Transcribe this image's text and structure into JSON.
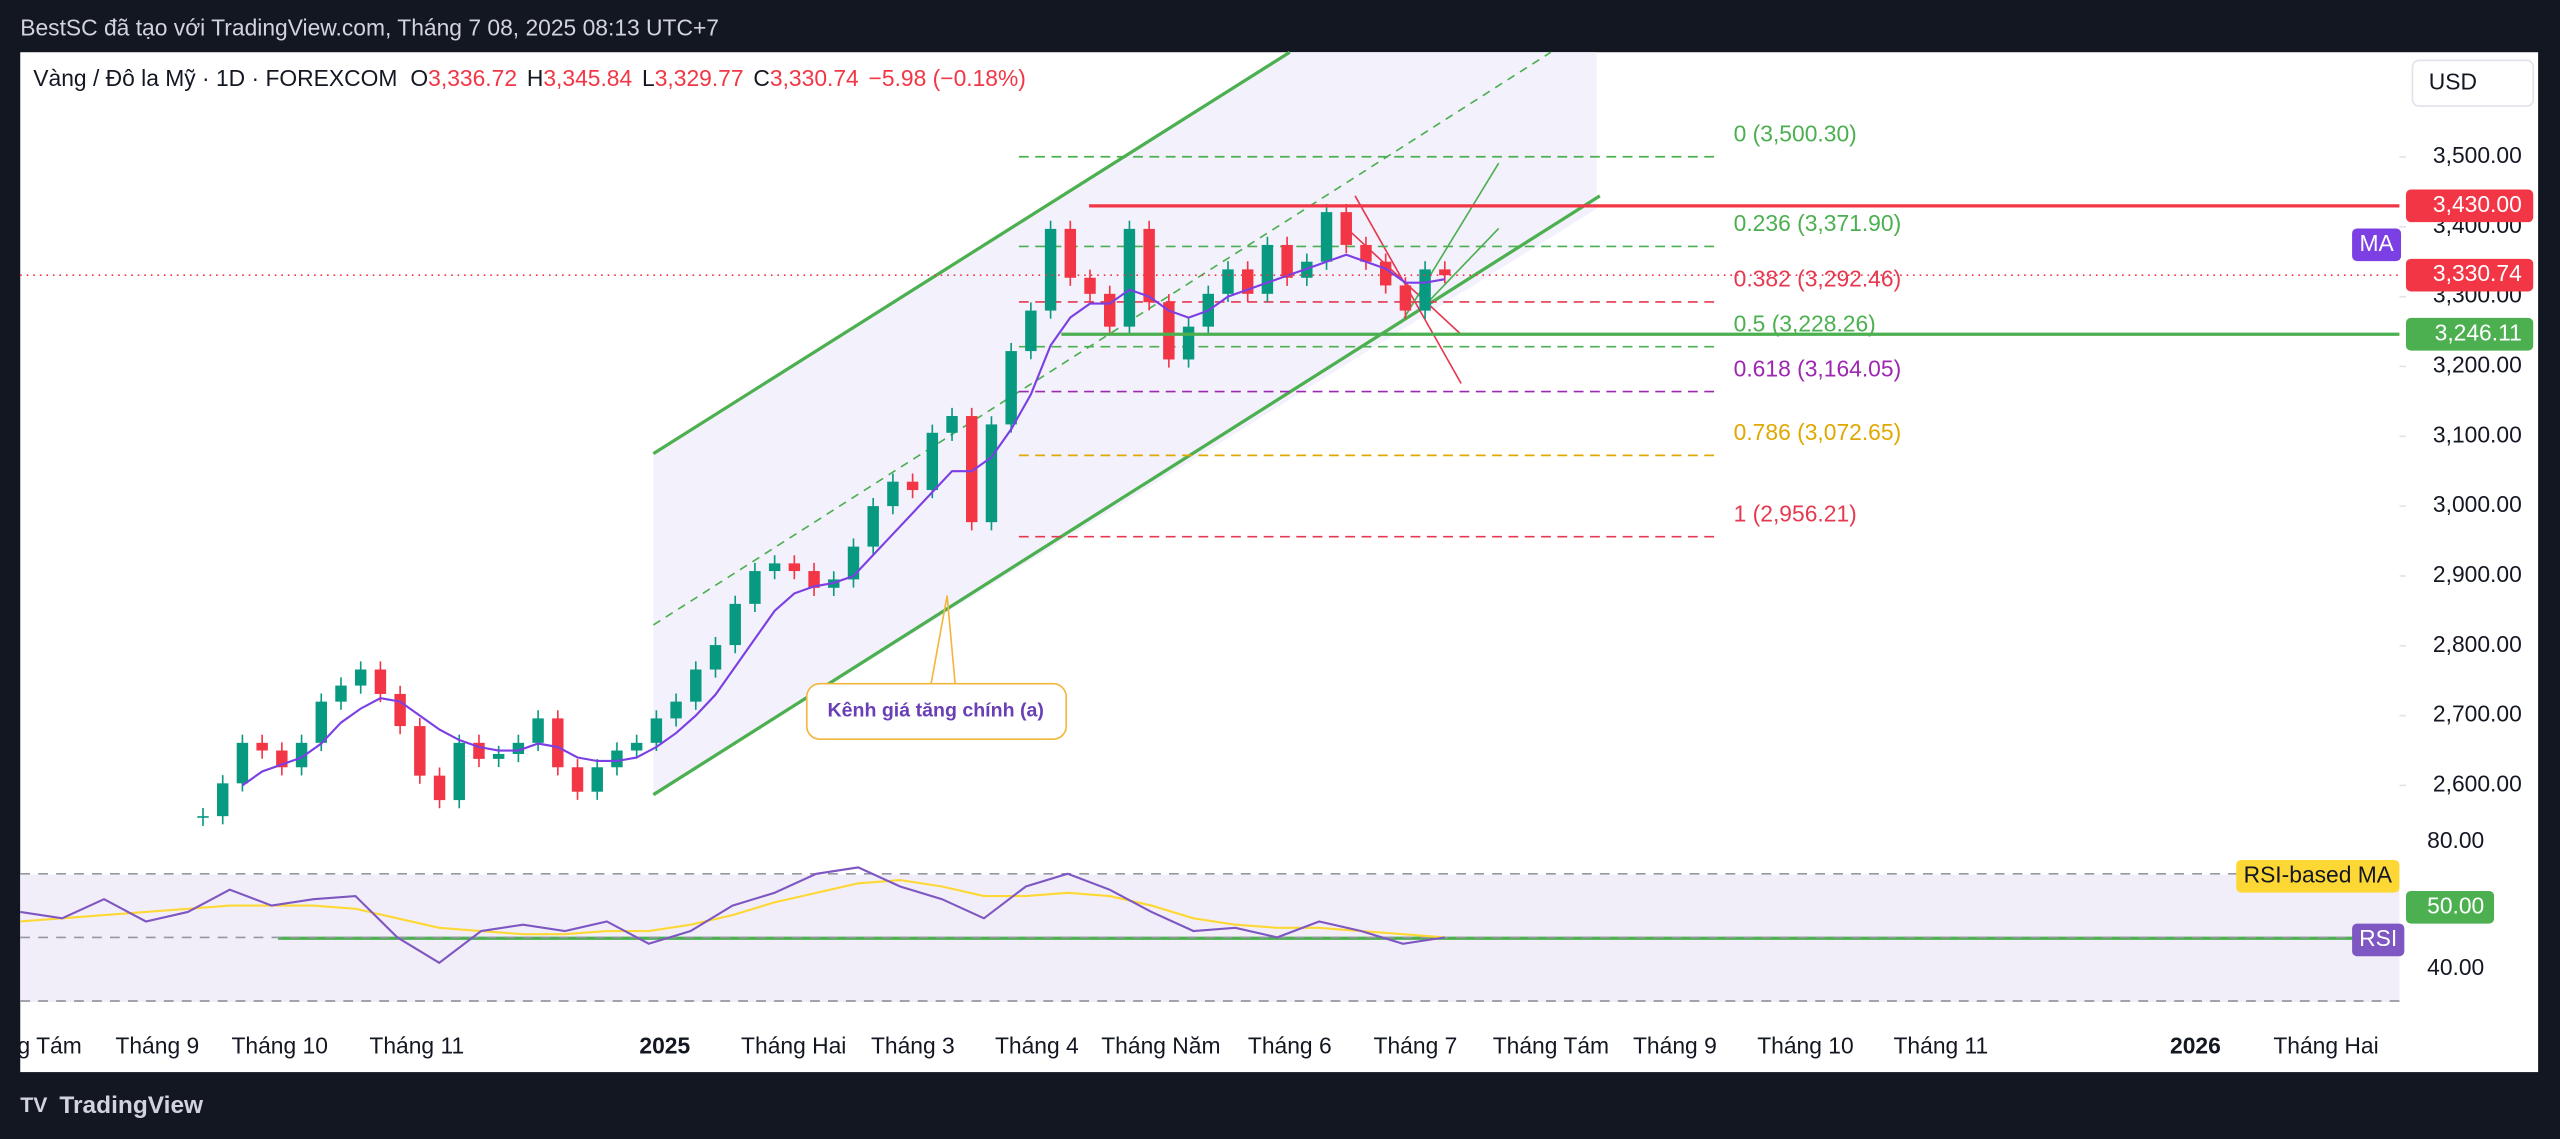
{
  "header": {
    "text": "BestSC đã tạo với TradingView.com, Tháng 7 08, 2025 08:13 UTC+7"
  },
  "footer": {
    "brand": "TradingView"
  },
  "chart_data": {
    "type": "candlestick",
    "symbol": "Vàng / Đô la Mỹ · 1D · FOREXCOM",
    "ohlc": [
      {
        "key": "O",
        "value": 3336.72,
        "label": "3,336.72"
      },
      {
        "key": "H",
        "value": 3345.84,
        "label": "3,345.84"
      },
      {
        "key": "L",
        "value": 3329.77,
        "label": "3,329.77"
      },
      {
        "key": "C",
        "value": 3330.74,
        "label": "3,330.74"
      }
    ],
    "change": "−5.98 (−0.18%)",
    "currency": "USD",
    "x_labels": [
      "g Tám",
      "Tháng 9",
      "Tháng 10",
      "Tháng 11",
      "2025",
      "Tháng Hai",
      "Tháng 3",
      "Tháng 4",
      "Tháng Năm",
      "Tháng 6",
      "Tháng 7",
      "Tháng Tám",
      "Tháng 9",
      "Tháng 10",
      "Tháng 11",
      "2026",
      "Tháng Hai"
    ],
    "up_color": "#089981",
    "down_color": "#f23645",
    "closes": [
      2556,
      2603,
      2661,
      2650,
      2626,
      2661,
      2720,
      2743,
      2766,
      2731,
      2685,
      2614,
      2579,
      2661,
      2638,
      2645,
      2661,
      2696,
      2626,
      2591,
      2626,
      2650,
      2661,
      2696,
      2720,
      2766,
      2801,
      2860,
      2907,
      2918,
      2907,
      2883,
      2895,
      2942,
      3000,
      3035,
      3023,
      3105,
      3129,
      2977,
      3117,
      3222,
      3280,
      3397,
      3327,
      3304,
      3257,
      3397,
      3292,
      3210,
      3257,
      3304,
      3339,
      3304,
      3374,
      3327,
      3350,
      3421,
      3374,
      3350,
      3316,
      3280,
      3339,
      3330.74
    ],
    "ma": {
      "name": "MA",
      "color": "#7b3fe4",
      "values": [
        null,
        null,
        2600,
        2620,
        2630,
        2640,
        2660,
        2690,
        2710,
        2725,
        2720,
        2700,
        2680,
        2665,
        2655,
        2650,
        2650,
        2660,
        2655,
        2640,
        2635,
        2635,
        2640,
        2655,
        2675,
        2700,
        2730,
        2770,
        2810,
        2850,
        2875,
        2885,
        2890,
        2900,
        2930,
        2960,
        2990,
        3020,
        3050,
        3050,
        3070,
        3110,
        3160,
        3230,
        3270,
        3290,
        3290,
        3310,
        3300,
        3280,
        3270,
        3280,
        3300,
        3310,
        3320,
        3330,
        3340,
        3350,
        3360,
        3350,
        3340,
        3320,
        3320,
        3325
      ]
    },
    "ylim": [
      2540,
      3650
    ],
    "yticks": [
      {
        "value": 2600,
        "label": "2,600.00"
      },
      {
        "value": 2700,
        "label": "2,700.00"
      },
      {
        "value": 2800,
        "label": "2,800.00"
      },
      {
        "value": 2900,
        "label": "2,900.00"
      },
      {
        "value": 3000,
        "label": "3,000.00"
      },
      {
        "value": 3100,
        "label": "3,100.00"
      },
      {
        "value": 3200,
        "label": "3,200.00"
      },
      {
        "value": 3300,
        "label": "3,300.00"
      },
      {
        "value": 3400,
        "label": "3,400.00"
      },
      {
        "value": 3500,
        "label": "3,500.00"
      }
    ],
    "price_lines": [
      {
        "value": 3430,
        "label": "3,430.00",
        "color": "#f23645"
      },
      {
        "value": 3330.74,
        "label": "3,330.74",
        "color": "#f23645"
      },
      {
        "value": 3246.11,
        "label": "3,246.11",
        "color": "#4caf50"
      }
    ],
    "fib": [
      {
        "value": 3500.3,
        "label": "0 (3,500.30)",
        "color": "#4caf50"
      },
      {
        "value": 3371.9,
        "label": "0.236 (3,371.90)",
        "color": "#4caf50"
      },
      {
        "value": 3292.46,
        "label": "0.382 (3,292.46)",
        "color": "#e53950"
      },
      {
        "value": 3228.26,
        "label": "0.5 (3,228.26)",
        "color": "#4caf50"
      },
      {
        "value": 3164.05,
        "label": "0.618 (3,164.05)",
        "color": "#9c27b0"
      },
      {
        "value": 3072.65,
        "label": "0.786 (3,072.65)",
        "color": "#e0a800"
      },
      {
        "value": 2956.21,
        "label": "1 (2,956.21)",
        "color": "#e53950"
      }
    ],
    "annotation": "Kênh giá tăng chính (a)",
    "rsi": {
      "name": "RSI",
      "color": "#7e57c2",
      "values": [
        58,
        56,
        62,
        55,
        58,
        65,
        60,
        62,
        63,
        50,
        42,
        52,
        54,
        52,
        55,
        48,
        52,
        60,
        64,
        70,
        72,
        66,
        62,
        56,
        66,
        70,
        65,
        58,
        52,
        53,
        50,
        55,
        52,
        48,
        50
      ],
      "ma": {
        "name": "RSI-based MA",
        "color": "#fdd835",
        "values": [
          55,
          56,
          57,
          58,
          59,
          60,
          60,
          60,
          59,
          56,
          53,
          52,
          51,
          51,
          52,
          52,
          54,
          57,
          61,
          64,
          67,
          68,
          66,
          63,
          63,
          64,
          63,
          60,
          56,
          54,
          53,
          53,
          52,
          51,
          50
        ]
      },
      "ylim": [
        21.5,
        84.6
      ],
      "yticks": [
        {
          "value": 80,
          "label": "80.00"
        },
        {
          "value": 40,
          "label": "40.00"
        }
      ],
      "bands": [
        70,
        50,
        30
      ],
      "current": {
        "value": 50,
        "label": "50.00"
      }
    }
  }
}
